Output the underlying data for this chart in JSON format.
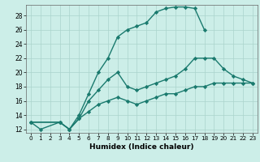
{
  "xlabel": "Humidex (Indice chaleur)",
  "bg_color": "#cceee8",
  "grid_color": "#aad4cc",
  "line_color": "#1a7a6e",
  "marker": "D",
  "markersize": 2.2,
  "linewidth": 1.0,
  "xlim": [
    -0.5,
    23.5
  ],
  "ylim": [
    11.5,
    29.5
  ],
  "xticks": [
    0,
    1,
    2,
    3,
    4,
    5,
    6,
    7,
    8,
    9,
    10,
    11,
    12,
    13,
    14,
    15,
    16,
    17,
    18,
    19,
    20,
    21,
    22,
    23
  ],
  "yticks": [
    12,
    14,
    16,
    18,
    20,
    22,
    24,
    26,
    28
  ],
  "curve1_x": [
    0,
    1,
    3,
    4,
    5,
    6,
    7,
    8,
    9,
    10,
    11,
    12,
    13,
    14,
    15,
    16,
    17,
    18
  ],
  "curve1_y": [
    13,
    12,
    13,
    12,
    14,
    17,
    20,
    22,
    25,
    26,
    26.5,
    27,
    28.5,
    29,
    29.2,
    29.2,
    29,
    26
  ],
  "curve2_x": [
    0,
    3,
    4,
    5,
    6,
    7,
    8,
    9,
    10,
    11,
    12,
    13,
    14,
    15,
    16,
    17,
    18,
    19,
    20,
    21,
    22,
    23
  ],
  "curve2_y": [
    13,
    13,
    12,
    13.5,
    16,
    17.5,
    19,
    20,
    18,
    17.5,
    18,
    18.5,
    19,
    19.5,
    20.5,
    22,
    22,
    22,
    20.5,
    19.5,
    19,
    18.5
  ],
  "curve3_x": [
    0,
    3,
    4,
    5,
    6,
    7,
    8,
    9,
    10,
    11,
    12,
    13,
    14,
    15,
    16,
    17,
    18,
    19,
    20,
    21,
    22,
    23
  ],
  "curve3_y": [
    13,
    13,
    12,
    13.5,
    14.5,
    15.5,
    16,
    16.5,
    16,
    15.5,
    16,
    16.5,
    17,
    17,
    17.5,
    18,
    18,
    18.5,
    18.5,
    18.5,
    18.5,
    18.5
  ]
}
